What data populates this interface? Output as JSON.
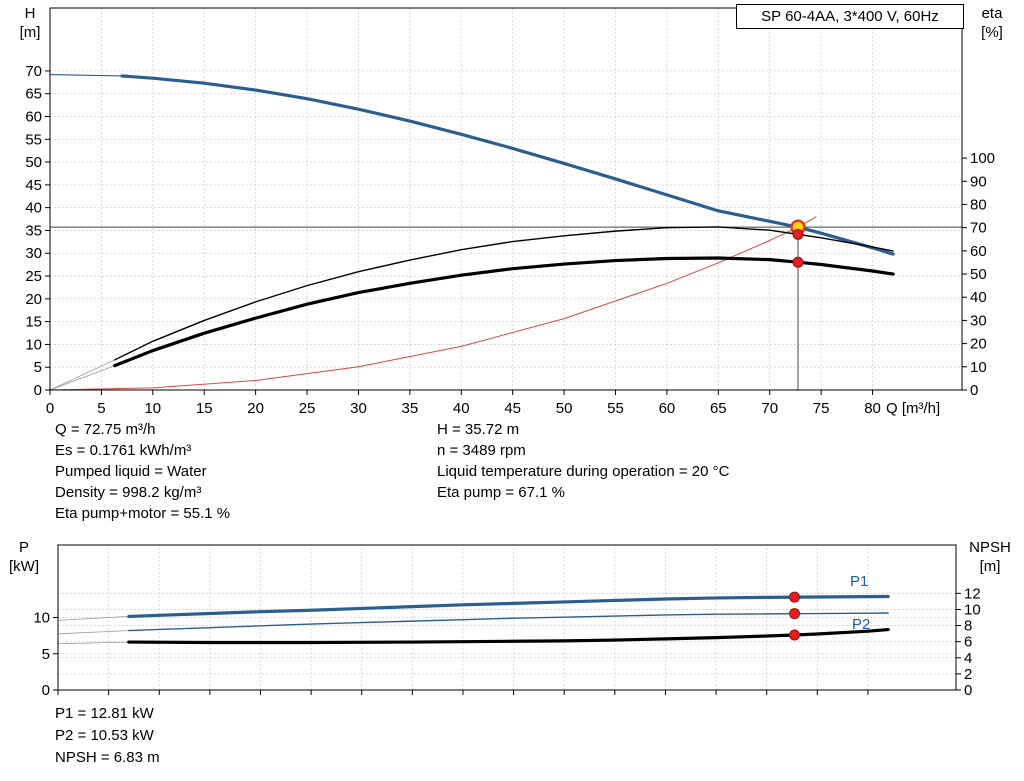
{
  "header": {
    "model_box": "SP 60-4AA, 3*400 V, 60Hz"
  },
  "top_chart": {
    "left_axis_title": [
      "H",
      "[m]"
    ],
    "right_axis_title": [
      "eta",
      "[%]"
    ],
    "x_axis_title": "Q [m³/h]"
  },
  "operating_data": {
    "left": [
      "Q = 72.75 m³/h",
      "Es = 0.1761 kWh/m³",
      "Pumped liquid = Water",
      "Density = 998.2 kg/m³",
      "Eta pump+motor = 55.1 %"
    ],
    "right": [
      "H = 35.72 m",
      "n = 3489 rpm",
      "Liquid temperature during operation = 20 °C",
      "Eta pump = 67.1 %"
    ]
  },
  "bottom_chart": {
    "left_axis_title": [
      "P",
      "[kW]"
    ],
    "right_axis_title": [
      "NPSH",
      "[m]"
    ],
    "p1_label": "P1",
    "p2_label": "P2"
  },
  "results": [
    "P1 = 12.81 kW",
    "P2 = 10.53 kW",
    "NPSH = 6.83 m"
  ],
  "colors": {
    "curve_blue": "#2b5e8e",
    "curve_black": "#000000",
    "system_red": "#d94545",
    "dot_red": "#e31f1f",
    "target_yellow": "#ffd400",
    "grid_gray": "#c0c0c0",
    "label_blue": "#1b5fa8"
  },
  "chart_data": [
    {
      "id": "hq-eta-chart",
      "type": "line",
      "title": "SP 60-4AA, 3*400 V, 60Hz",
      "xlabel": "Q [m³/h]",
      "ylabel_left": "H [m]",
      "ylabel_right": "eta [%]",
      "xlim": [
        0,
        88.7
      ],
      "xticks": [
        0,
        5,
        10,
        15,
        20,
        25,
        30,
        35,
        40,
        45,
        50,
        55,
        60,
        65,
        70,
        75,
        80
      ],
      "ylim_left": [
        0,
        83.8
      ],
      "yticks_left": [
        0,
        5,
        10,
        15,
        20,
        25,
        30,
        35,
        40,
        45,
        50,
        55,
        60,
        65,
        70
      ],
      "ylim_right": [
        0,
        164.7
      ],
      "yticks_right": [
        0,
        10,
        20,
        30,
        40,
        50,
        60,
        70,
        80,
        90,
        100
      ],
      "series": [
        {
          "name": "head-curve-leader",
          "axis": "left",
          "color": "#2b5e8e",
          "width": 1.2,
          "x": [
            0,
            7
          ],
          "y": [
            69.2,
            68.9
          ]
        },
        {
          "name": "eta-pump-leader",
          "axis": "right",
          "color": "#999999",
          "width": 0.8,
          "x": [
            0,
            6.3
          ],
          "y": [
            0,
            13
          ]
        },
        {
          "name": "eta-pump-motor-leader",
          "axis": "right",
          "color": "#999999",
          "width": 0.8,
          "x": [
            0,
            6.3
          ],
          "y": [
            0,
            10.5
          ]
        },
        {
          "name": "system-curve",
          "axis": "left",
          "color": "#d94545",
          "width": 1,
          "x": [
            0,
            10,
            20,
            30,
            40,
            50,
            60,
            65,
            70,
            72.75,
            74.5
          ],
          "y": [
            0,
            0.46,
            2.09,
            5.1,
            9.57,
            15.65,
            23.4,
            27.9,
            32.8,
            35.72,
            38
          ]
        },
        {
          "name": "head-curve",
          "axis": "left",
          "color": "#2b5e8e",
          "width": 3.2,
          "x": [
            7,
            10,
            15,
            20,
            25,
            30,
            35,
            40,
            45,
            50,
            55,
            60,
            65,
            70,
            72.75,
            75,
            80,
            82
          ],
          "y": [
            68.9,
            68.4,
            67.3,
            65.8,
            63.9,
            61.6,
            59.0,
            56.1,
            53.0,
            49.7,
            46.3,
            42.8,
            39.3,
            37.0,
            35.72,
            34.4,
            31.2,
            29.8
          ]
        },
        {
          "name": "eta-pump-curve",
          "axis": "right",
          "color": "#000000",
          "width": 1.4,
          "x": [
            6.3,
            10,
            15,
            20,
            25,
            30,
            35,
            40,
            45,
            50,
            55,
            60,
            65,
            70,
            72.75,
            75,
            80,
            82
          ],
          "y": [
            13,
            21,
            30,
            38,
            45,
            51,
            56,
            60.5,
            64,
            66.5,
            68.5,
            70,
            70.3,
            68.9,
            67.1,
            65.6,
            61.7,
            59.9
          ]
        },
        {
          "name": "eta-pump-motor-curve",
          "axis": "right",
          "color": "#000000",
          "width": 3.2,
          "x": [
            6.3,
            10,
            15,
            20,
            25,
            30,
            35,
            40,
            45,
            50,
            55,
            60,
            65,
            70,
            72.75,
            75,
            80,
            82
          ],
          "y": [
            10.5,
            17,
            24.5,
            31,
            37,
            42,
            46,
            49.5,
            52.3,
            54.3,
            55.8,
            56.7,
            56.9,
            56.2,
            55.1,
            54.1,
            51.3,
            50
          ]
        }
      ],
      "crosshair": {
        "x": 72.75,
        "y_left": 35.72
      },
      "markers": [
        {
          "x": 72.75,
          "y": 35.72,
          "axis": "left",
          "style": "target",
          "label": "duty-point"
        },
        {
          "x": 72.75,
          "y": 67.1,
          "axis": "right",
          "style": "dot",
          "label": "eta-pump-point"
        },
        {
          "x": 72.75,
          "y": 55.1,
          "axis": "right",
          "style": "dot",
          "label": "eta-pump-motor-point"
        }
      ]
    },
    {
      "id": "power-npsh-chart",
      "type": "line",
      "ylabel_left": "P [kW]",
      "ylabel_right": "NPSH [m]",
      "xlim": [
        0,
        88.7
      ],
      "xticks": [
        0,
        5,
        10,
        15,
        20,
        25,
        30,
        35,
        40,
        45,
        50,
        55,
        60,
        65,
        70,
        75,
        80
      ],
      "ylim_left": [
        0,
        20
      ],
      "yticks_left": [
        0,
        5,
        10
      ],
      "ylim_right": [
        0,
        18
      ],
      "yticks_right": [
        0,
        2,
        4,
        6,
        8,
        10,
        12
      ],
      "series": [
        {
          "name": "p1-leader",
          "axis": "left",
          "color": "#999999",
          "width": 0.8,
          "x": [
            0,
            7
          ],
          "y": [
            9.6,
            10.15
          ]
        },
        {
          "name": "p2-leader",
          "axis": "left",
          "color": "#999999",
          "width": 0.8,
          "x": [
            0,
            7
          ],
          "y": [
            7.75,
            8.2
          ]
        },
        {
          "name": "npsh-leader",
          "axis": "right",
          "color": "#999999",
          "width": 0.8,
          "x": [
            0,
            7
          ],
          "y": [
            5.75,
            5.95
          ]
        },
        {
          "name": "p1-curve",
          "axis": "left",
          "color": "#2b5e8e",
          "width": 3.2,
          "x": [
            7,
            10,
            15,
            20,
            25,
            30,
            35,
            40,
            45,
            50,
            55,
            60,
            65,
            70,
            72.75,
            75,
            80,
            82
          ],
          "y": [
            10.15,
            10.3,
            10.55,
            10.8,
            11.0,
            11.25,
            11.5,
            11.75,
            11.95,
            12.15,
            12.35,
            12.55,
            12.7,
            12.78,
            12.81,
            12.83,
            12.88,
            12.9
          ]
        },
        {
          "name": "p2-curve",
          "axis": "left",
          "color": "#2b5e8e",
          "width": 1.4,
          "x": [
            7,
            10,
            15,
            20,
            25,
            30,
            35,
            40,
            45,
            50,
            55,
            60,
            65,
            70,
            72.75,
            75,
            80,
            82
          ],
          "y": [
            8.2,
            8.35,
            8.6,
            8.85,
            9.1,
            9.3,
            9.5,
            9.7,
            9.9,
            10.05,
            10.2,
            10.35,
            10.45,
            10.5,
            10.53,
            10.55,
            10.6,
            10.62
          ]
        },
        {
          "name": "npsh-curve",
          "axis": "right",
          "color": "#000000",
          "width": 3.2,
          "x": [
            7,
            15,
            25,
            35,
            45,
            50,
            55,
            60,
            65,
            70,
            72.75,
            75,
            80,
            82
          ],
          "y": [
            5.95,
            5.9,
            5.9,
            5.95,
            6.05,
            6.1,
            6.2,
            6.35,
            6.5,
            6.7,
            6.83,
            6.95,
            7.3,
            7.5
          ]
        }
      ],
      "markers": [
        {
          "x": 72.75,
          "y": 12.81,
          "axis": "left",
          "style": "dot",
          "label": "p1-point"
        },
        {
          "x": 72.75,
          "y": 10.53,
          "axis": "left",
          "style": "dot",
          "label": "p2-point"
        },
        {
          "x": 72.75,
          "y": 6.83,
          "axis": "right",
          "style": "dot",
          "label": "npsh-point"
        }
      ]
    }
  ]
}
